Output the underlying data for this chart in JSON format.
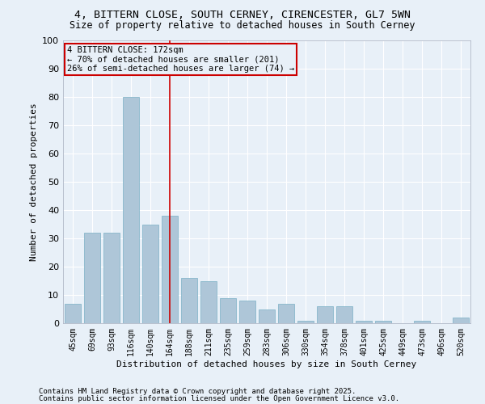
{
  "title1": "4, BITTERN CLOSE, SOUTH CERNEY, CIRENCESTER, GL7 5WN",
  "title2": "Size of property relative to detached houses in South Cerney",
  "xlabel": "Distribution of detached houses by size in South Cerney",
  "ylabel": "Number of detached properties",
  "categories": [
    "45sqm",
    "69sqm",
    "93sqm",
    "116sqm",
    "140sqm",
    "164sqm",
    "188sqm",
    "211sqm",
    "235sqm",
    "259sqm",
    "283sqm",
    "306sqm",
    "330sqm",
    "354sqm",
    "378sqm",
    "401sqm",
    "425sqm",
    "449sqm",
    "473sqm",
    "496sqm",
    "520sqm"
  ],
  "values": [
    7,
    32,
    32,
    80,
    35,
    38,
    16,
    15,
    9,
    8,
    5,
    7,
    1,
    6,
    6,
    1,
    1,
    0,
    1,
    0,
    2
  ],
  "bar_color": "#aec6d8",
  "bar_edge_color": "#7aafc5",
  "bg_color": "#e8f0f8",
  "grid_color": "#ffffff",
  "ref_line_index": 5,
  "ref_line_color": "#cc0000",
  "annotation_text": "4 BITTERN CLOSE: 172sqm\n← 70% of detached houses are smaller (201)\n26% of semi-detached houses are larger (74) →",
  "annotation_box_color": "#cc0000",
  "footer1": "Contains HM Land Registry data © Crown copyright and database right 2025.",
  "footer2": "Contains public sector information licensed under the Open Government Licence v3.0.",
  "ylim": [
    0,
    100
  ],
  "yticks": [
    0,
    10,
    20,
    30,
    40,
    50,
    60,
    70,
    80,
    90,
    100
  ]
}
